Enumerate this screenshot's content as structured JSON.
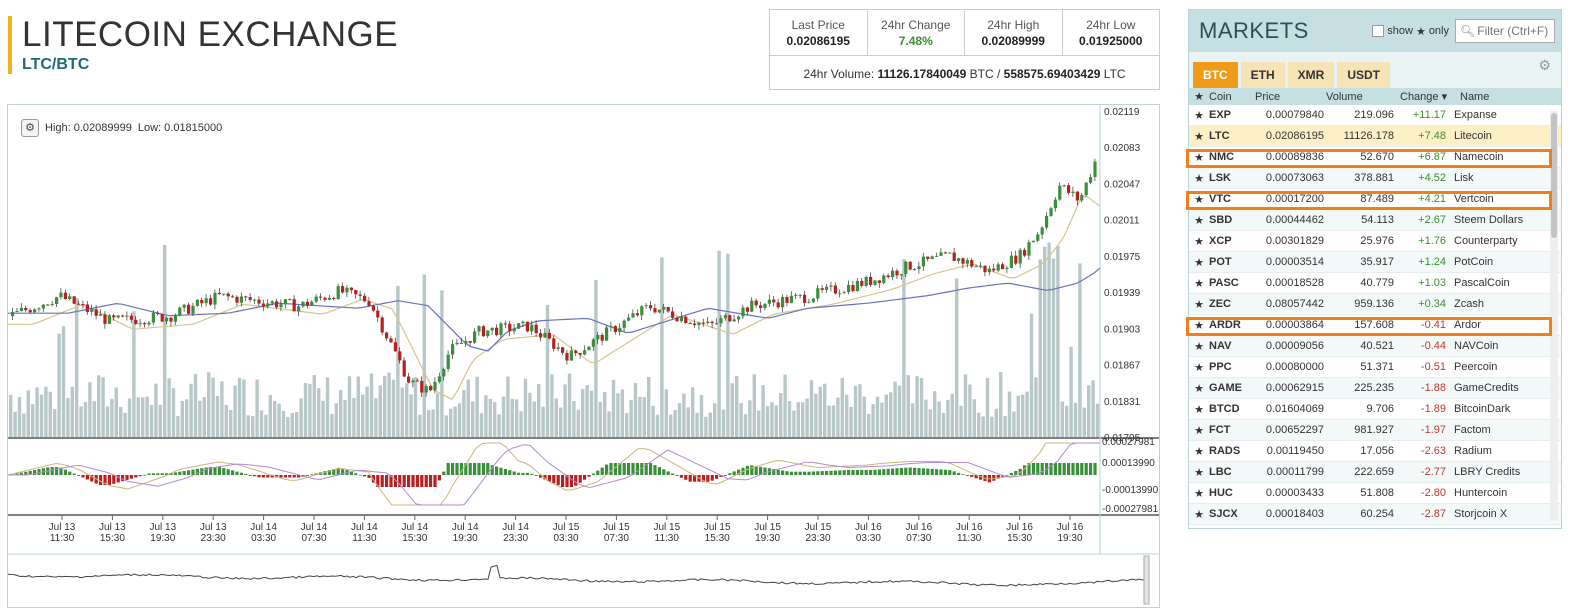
{
  "header": {
    "title": "LITECOIN EXCHANGE",
    "pair": "LTC/BTC"
  },
  "stats": {
    "last_price_label": "Last Price",
    "last_price": "0.02086195",
    "change_label": "24hr Change",
    "change": "7.48%",
    "high_label": "24hr High",
    "high": "0.02089999",
    "low_label": "24hr Low",
    "low": "0.01925000",
    "volume_label": "24hr Volume:",
    "volume_btc": "11126.17840049",
    "btc_unit": "BTC",
    "sep": "/",
    "volume_ltc": "558575.69403429",
    "ltc_unit": "LTC"
  },
  "chart": {
    "high_label": "High: 0.02089999",
    "low_label": "Low: 0.01815000",
    "gear_icon": "gear-icon",
    "up_color": "#3a8f3a",
    "down_color": "#b72020",
    "volume_color": "#b8c8c8",
    "price_ticks": [
      "0.02119",
      "0.02083",
      "0.02047",
      "0.02011",
      "0.01975",
      "0.01939",
      "0.01903",
      "0.01867",
      "0.01831",
      "0.01795"
    ],
    "macd_ticks": [
      "0.00027981",
      "0.00013990",
      "-0.00013990",
      "-0.00027981"
    ],
    "time_ticks": [
      [
        "Jul 13",
        "11:30"
      ],
      [
        "Jul 13",
        "15:30"
      ],
      [
        "Jul 13",
        "19:30"
      ],
      [
        "Jul 13",
        "23:30"
      ],
      [
        "Jul 14",
        "03:30"
      ],
      [
        "Jul 14",
        "07:30"
      ],
      [
        "Jul 14",
        "11:30"
      ],
      [
        "Jul 14",
        "15:30"
      ],
      [
        "Jul 14",
        "19:30"
      ],
      [
        "Jul 14",
        "23:30"
      ],
      [
        "Jul 15",
        "03:30"
      ],
      [
        "Jul 15",
        "07:30"
      ],
      [
        "Jul 15",
        "11:30"
      ],
      [
        "Jul 15",
        "15:30"
      ],
      [
        "Jul 15",
        "19:30"
      ],
      [
        "Jul 15",
        "23:30"
      ],
      [
        "Jul 16",
        "03:30"
      ],
      [
        "Jul 16",
        "07:30"
      ],
      [
        "Jul 16",
        "11:30"
      ],
      [
        "Jul 16",
        "15:30"
      ],
      [
        "Jul 16",
        "19:30"
      ]
    ]
  },
  "markets": {
    "title": "MARKETS",
    "show_label": "show",
    "only_label": "only",
    "filter_placeholder": "Filter (Ctrl+F)",
    "tabs": [
      "BTC",
      "ETH",
      "XMR",
      "USDT"
    ],
    "columns": {
      "coin": "Coin",
      "price": "Price",
      "volume": "Volume",
      "change": "Change",
      "name": "Name"
    },
    "rows": [
      {
        "coin": "EXP",
        "price": "0.00079840",
        "volume": "219.096",
        "change": "+11.17",
        "name": "Expanse"
      },
      {
        "coin": "LTC",
        "price": "0.02086195",
        "volume": "11126.178",
        "change": "+7.48",
        "name": "Litecoin"
      },
      {
        "coin": "NMC",
        "price": "0.00089836",
        "volume": "52.670",
        "change": "+6.87",
        "name": "Namecoin"
      },
      {
        "coin": "LSK",
        "price": "0.00073063",
        "volume": "378.881",
        "change": "+4.52",
        "name": "Lisk"
      },
      {
        "coin": "VTC",
        "price": "0.00017200",
        "volume": "87.489",
        "change": "+4.21",
        "name": "Vertcoin"
      },
      {
        "coin": "SBD",
        "price": "0.00044462",
        "volume": "54.113",
        "change": "+2.67",
        "name": "Steem Dollars"
      },
      {
        "coin": "XCP",
        "price": "0.00301829",
        "volume": "25.976",
        "change": "+1.76",
        "name": "Counterparty"
      },
      {
        "coin": "POT",
        "price": "0.00003514",
        "volume": "35.917",
        "change": "+1.24",
        "name": "PotCoin"
      },
      {
        "coin": "PASC",
        "price": "0.00018528",
        "volume": "40.779",
        "change": "+1.03",
        "name": "PascalCoin"
      },
      {
        "coin": "ZEC",
        "price": "0.08057442",
        "volume": "959.136",
        "change": "+0.34",
        "name": "Zcash"
      },
      {
        "coin": "ARDR",
        "price": "0.00003864",
        "volume": "157.608",
        "change": "-0.41",
        "name": "Ardor"
      },
      {
        "coin": "NAV",
        "price": "0.00009056",
        "volume": "40.521",
        "change": "-0.44",
        "name": "NAVCoin"
      },
      {
        "coin": "PPC",
        "price": "0.00080000",
        "volume": "51.371",
        "change": "-0.51",
        "name": "Peercoin"
      },
      {
        "coin": "GAME",
        "price": "0.00062915",
        "volume": "225.235",
        "change": "-1.88",
        "name": "GameCredits"
      },
      {
        "coin": "BTCD",
        "price": "0.01604069",
        "volume": "9.706",
        "change": "-1.89",
        "name": "BitcoinDark"
      },
      {
        "coin": "FCT",
        "price": "0.00652297",
        "volume": "981.927",
        "change": "-1.97",
        "name": "Factom"
      },
      {
        "coin": "RADS",
        "price": "0.00119450",
        "volume": "17.056",
        "change": "-2.63",
        "name": "Radium"
      },
      {
        "coin": "LBC",
        "price": "0.00011799",
        "volume": "222.659",
        "change": "-2.77",
        "name": "LBRY Credits"
      },
      {
        "coin": "HUC",
        "price": "0.00003433",
        "volume": "51.808",
        "change": "-2.80",
        "name": "Huntercoin"
      },
      {
        "coin": "SJCX",
        "price": "0.00018403",
        "volume": "60.254",
        "change": "-2.87",
        "name": "Storjcoin X"
      }
    ],
    "highlighted": [
      "LTC"
    ],
    "outlined": [
      "LTC",
      "LSK",
      "ZEC"
    ]
  }
}
